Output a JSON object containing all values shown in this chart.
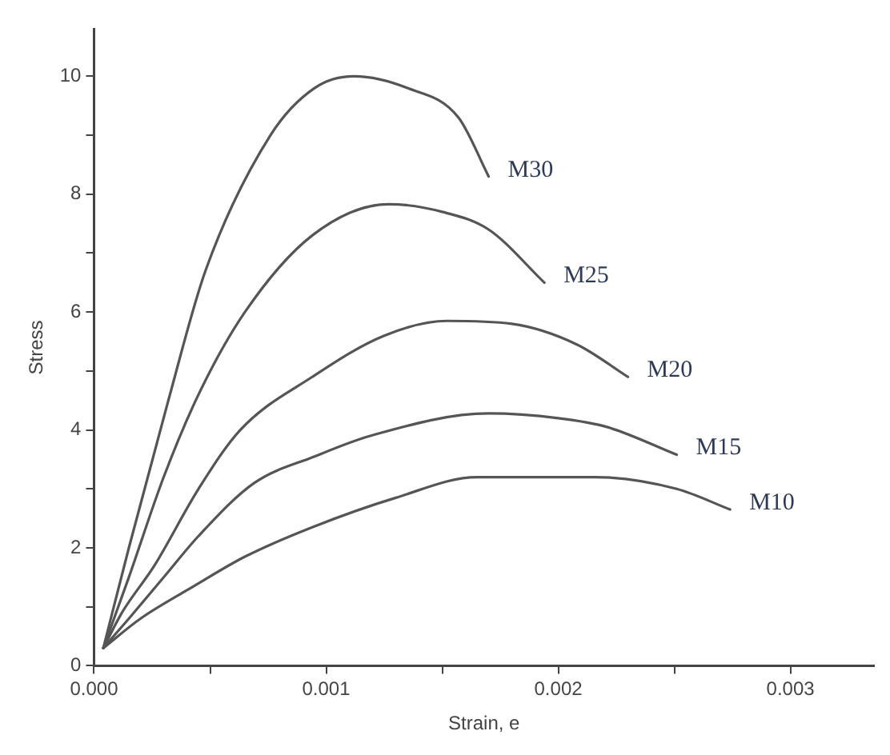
{
  "chart_data": {
    "type": "line",
    "xlabel": "Strain, e",
    "ylabel": "Stress",
    "xlim": [
      0,
      0.00336
    ],
    "ylim": [
      0,
      10.8
    ],
    "xticks": [
      {
        "value": 0,
        "label": "0.000"
      },
      {
        "value": 0.0005,
        "label": null
      },
      {
        "value": 0.001,
        "label": "0.001"
      },
      {
        "value": 0.0015,
        "label": null
      },
      {
        "value": 0.002,
        "label": "0.002"
      },
      {
        "value": 0.0025,
        "label": null
      },
      {
        "value": 0.003,
        "label": "0.003"
      }
    ],
    "yticks": [
      0,
      {
        "value": 1,
        "label": null
      },
      2,
      {
        "value": 3,
        "label": null
      },
      4,
      {
        "value": 5,
        "label": null
      },
      6,
      {
        "value": 7,
        "label": null
      },
      8,
      {
        "value": 9,
        "label": null
      },
      10
    ],
    "grid": false,
    "legend": false,
    "marker": "none",
    "line_style": "solid",
    "series": [
      {
        "name": "M30",
        "color": "#555555",
        "x": [
          4e-05,
          0.00015,
          0.00032,
          0.00048,
          0.00076,
          0.00095,
          0.00112,
          0.00135,
          0.00157,
          0.0017
        ],
        "values": [
          0.3,
          2,
          4.5,
          6.7,
          9.0,
          9.8,
          10.0,
          9.8,
          9.3,
          8.3
        ]
      },
      {
        "name": "M25",
        "color": "#555555",
        "x": [
          4e-05,
          0.00015,
          0.0003,
          0.00045,
          0.00065,
          0.00094,
          0.00127,
          0.0015,
          0.0017,
          0.00194
        ],
        "values": [
          0.3,
          1.5,
          3.2,
          4.6,
          6.0,
          7.3,
          7.83,
          7.7,
          7.4,
          6.5
        ]
      },
      {
        "name": "M20",
        "color": "#555555",
        "x": [
          4e-05,
          0.00012,
          0.00026,
          0.00045,
          0.00063,
          0.00094,
          0.00125,
          0.00152,
          0.0018,
          0.00208,
          0.0023
        ],
        "values": [
          0.3,
          0.9,
          1.7,
          3.0,
          4.0,
          4.9,
          5.6,
          5.85,
          5.8,
          5.45,
          4.9
        ]
      },
      {
        "name": "M15",
        "color": "#555555",
        "x": [
          4e-05,
          0.00015,
          0.0003,
          0.00045,
          0.00069,
          0.00095,
          0.00119,
          0.0017,
          0.002,
          0.00221,
          0.00251
        ],
        "values": [
          0.3,
          0.8,
          1.5,
          2.2,
          3.1,
          3.55,
          3.9,
          4.28,
          4.2,
          4.05,
          3.58
        ]
      },
      {
        "name": "M10",
        "color": "#555555",
        "x": [
          4e-05,
          0.0002,
          0.00043,
          0.00065,
          0.00094,
          0.0013,
          0.00165,
          0.00216,
          0.00251,
          0.00274
        ],
        "values": [
          0.3,
          0.8,
          1.35,
          1.85,
          2.35,
          2.85,
          3.2,
          3.2,
          3.0,
          2.65
        ]
      }
    ]
  }
}
